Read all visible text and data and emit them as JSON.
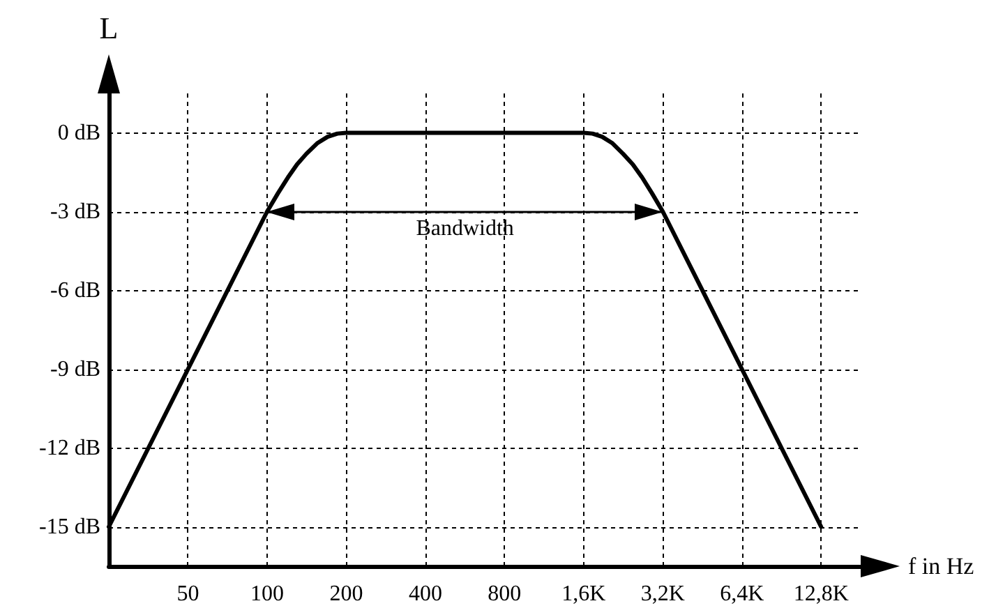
{
  "chart_data": {
    "type": "line",
    "xlabel": "f in Hz",
    "ylabel": "L",
    "log": "x",
    "x": [
      25,
      50,
      100,
      110,
      120,
      130,
      141,
      155,
      170,
      185,
      200,
      1600,
      1730,
      1880,
      2060,
      2260,
      2460,
      2670,
      2910,
      3200,
      6400,
      12800
    ],
    "series": [
      {
        "color": "#000000",
        "values": [
          -15,
          -9,
          -3,
          -2.3,
          -1.7,
          -1.2,
          -0.8,
          -0.4,
          -0.15,
          -0.03,
          0,
          0,
          -0.03,
          -0.15,
          -0.4,
          -0.8,
          -1.2,
          -1.7,
          -2.3,
          -3,
          -9,
          -15
        ]
      }
    ],
    "xlim": [
      25,
      18102
    ],
    "xticks": [
      50,
      100,
      200,
      400,
      800,
      {
        "value": 1600,
        "label": "1,6K"
      },
      {
        "value": 3200,
        "label": "3,2K"
      },
      {
        "value": 6400,
        "label": "6,4K"
      },
      {
        "value": 12800,
        "label": "12,8K"
      }
    ],
    "ylim": [
      -16.5,
      1.5
    ],
    "yticks": [
      {
        "value": 0,
        "label": "0 dB"
      },
      {
        "value": -3,
        "label": "-3 dB"
      },
      {
        "value": -6,
        "label": "-6 dB"
      },
      {
        "value": -9,
        "label": "-9 dB"
      },
      {
        "value": -12,
        "label": "-12 dB"
      },
      {
        "value": -15,
        "label": "-15 dB"
      }
    ],
    "grid": true,
    "marker": "none",
    "line_style": "solid",
    "ref_lines": [
      {
        "axis": "y",
        "value": -3,
        "label": "Bandwidth"
      }
    ]
  }
}
